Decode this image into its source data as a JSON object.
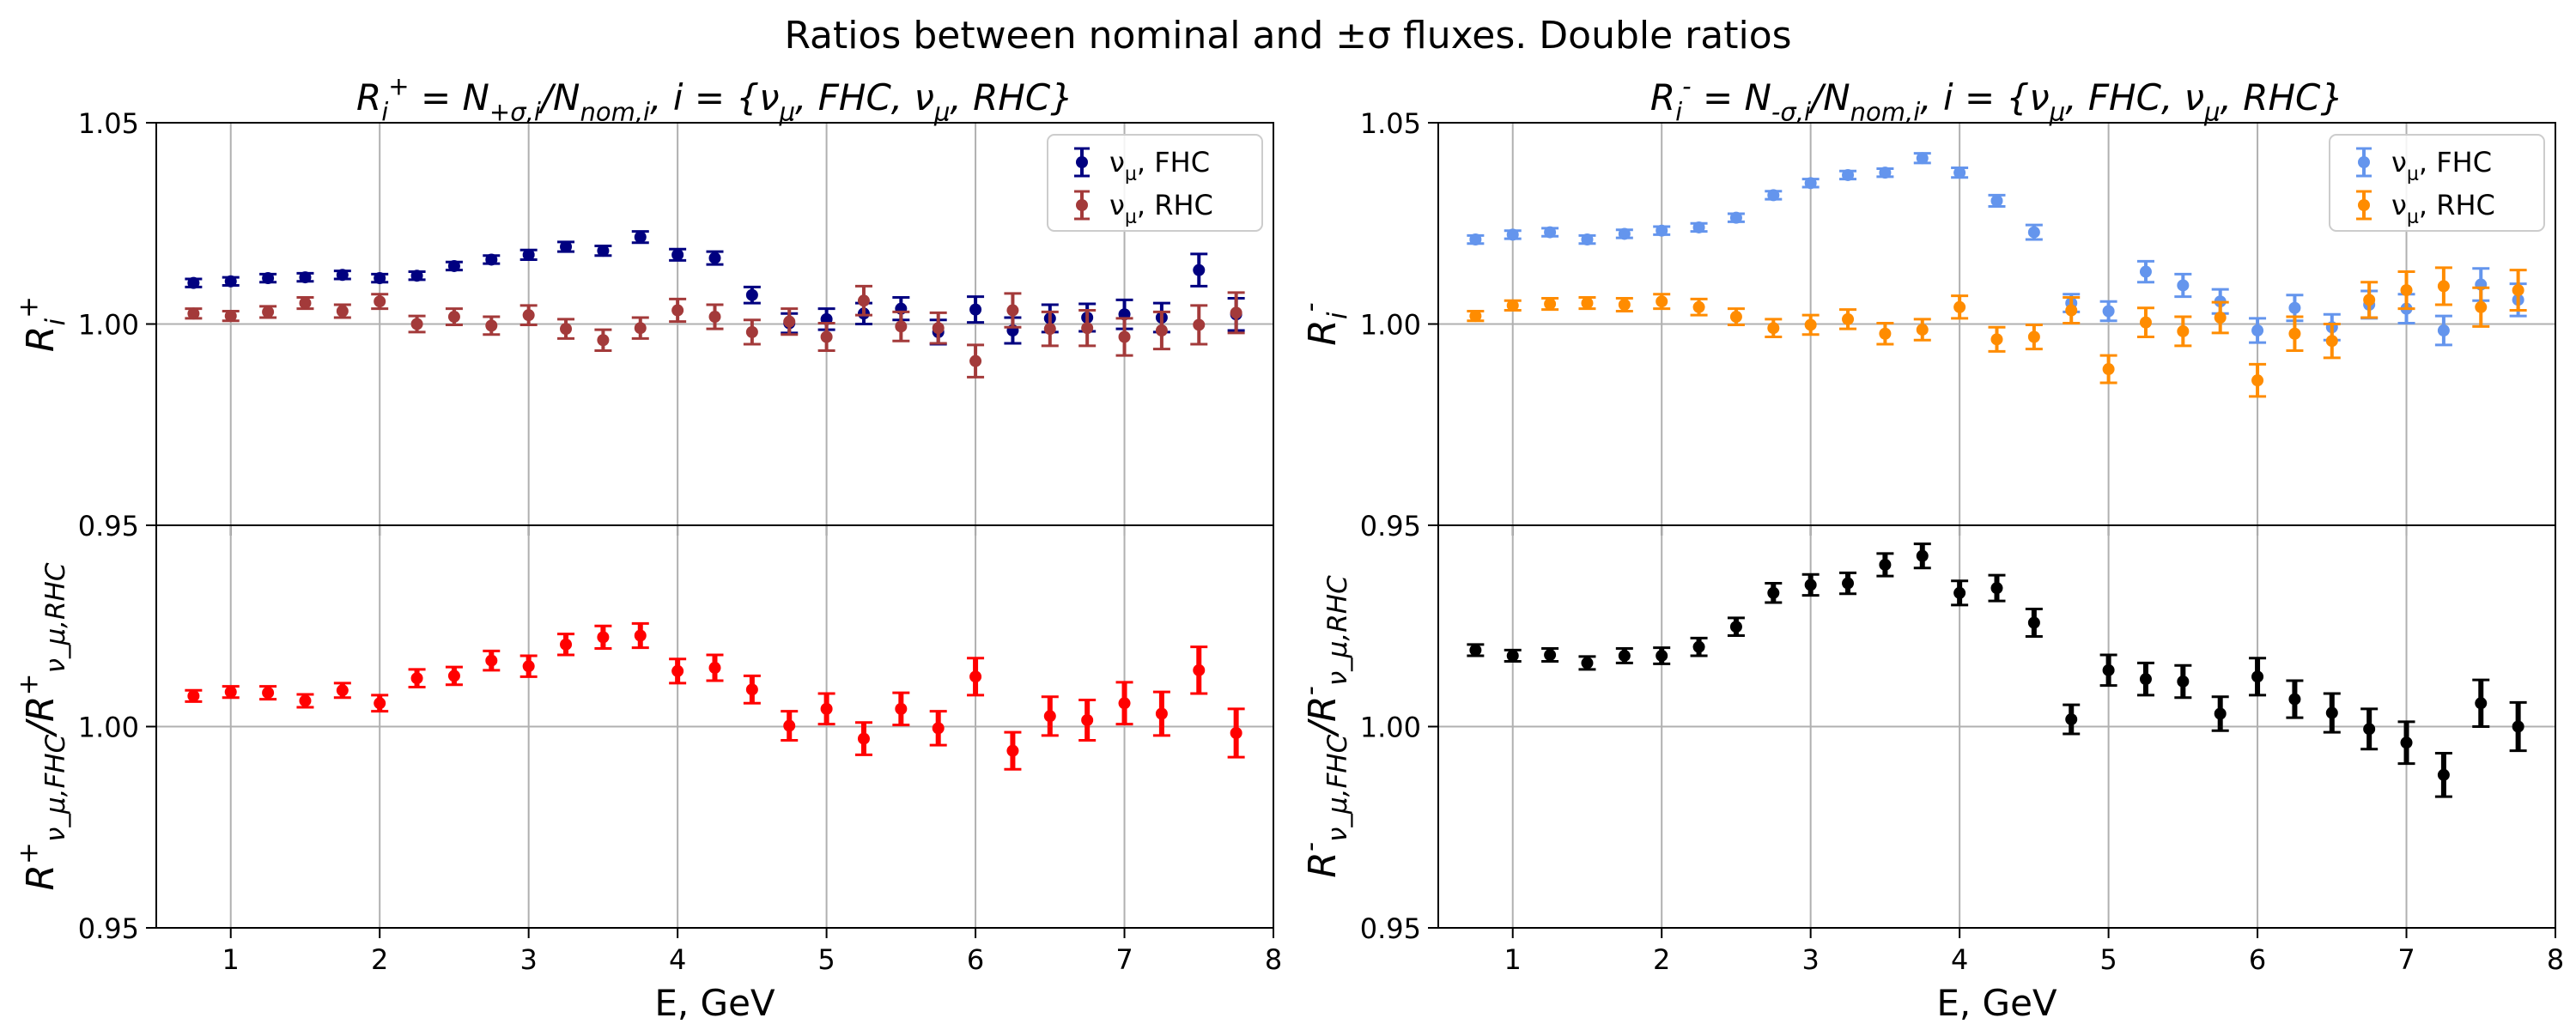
{
  "suptitle": "Ratios between nominal and ±σ fluxes. Double ratios",
  "chart_data": [
    {
      "type": "scatter",
      "panel": "top-left",
      "title": "R_i^+ = N_{+σ,i}/N_{nom,i}, i = {ν_μ, FHC, ν_μ, RHC}",
      "ylabel": "R_i^+",
      "xlabel": "",
      "xlim": [
        0.5,
        8
      ],
      "ylim": [
        0.95,
        1.05
      ],
      "yticks": [
        "0.95",
        "1.00",
        "1.05"
      ],
      "grid": true,
      "legend": "top-right",
      "x": [
        0.75,
        1.0,
        1.25,
        1.5,
        1.75,
        2.0,
        2.25,
        2.5,
        2.75,
        3.0,
        3.25,
        3.5,
        3.75,
        4.0,
        4.25,
        4.5,
        4.75,
        5.0,
        5.25,
        5.5,
        5.75,
        6.0,
        6.25,
        6.5,
        6.75,
        7.0,
        7.25,
        7.5,
        7.75
      ],
      "series": [
        {
          "name": "ν_μ, FHC",
          "color": "#000080",
          "values": [
            1.0102,
            1.0106,
            1.0114,
            1.0116,
            1.0122,
            1.0114,
            1.012,
            1.0144,
            1.016,
            1.0172,
            1.0192,
            1.0182,
            1.0216,
            1.0172,
            1.0164,
            1.0072,
            1.0002,
            1.0012,
            1.0026,
            1.0038,
            0.998,
            1.0036,
            0.9984,
            1.0014,
            1.0016,
            1.0024,
            1.0016,
            1.0134,
            1.0024
          ],
          "errors": [
            0.001,
            0.001,
            0.001,
            0.001,
            0.001,
            0.001,
            0.001,
            0.001,
            0.001,
            0.0012,
            0.0012,
            0.0012,
            0.0014,
            0.0014,
            0.0016,
            0.002,
            0.0024,
            0.0026,
            0.0026,
            0.0028,
            0.003,
            0.0032,
            0.0032,
            0.0034,
            0.0034,
            0.0036,
            0.0036,
            0.004,
            0.004
          ]
        },
        {
          "name": "ν_μ, RHC",
          "color": "#a33a3a",
          "values": [
            1.0026,
            1.002,
            1.003,
            1.0052,
            1.0032,
            1.0056,
            1.0,
            1.0018,
            0.9996,
            1.0022,
            0.9988,
            0.996,
            0.999,
            1.0034,
            1.0018,
            0.998,
            1.0006,
            0.9968,
            1.0058,
            0.9994,
            0.999,
            0.9908,
            1.0034,
            0.9988,
            0.999,
            0.9968,
            0.9984,
            0.9998,
            1.0028
          ],
          "errors": [
            0.0012,
            0.0012,
            0.0014,
            0.0014,
            0.0016,
            0.0018,
            0.002,
            0.002,
            0.0022,
            0.0024,
            0.0024,
            0.0026,
            0.0026,
            0.0028,
            0.003,
            0.003,
            0.0032,
            0.0034,
            0.0036,
            0.0036,
            0.0038,
            0.004,
            0.0042,
            0.0042,
            0.0044,
            0.0046,
            0.0046,
            0.0048,
            0.005
          ]
        }
      ]
    },
    {
      "type": "scatter",
      "panel": "top-right",
      "title": "R_i^- = N_{-σ,i}/N_{nom,i}, i = {ν_μ, FHC, ν_μ, RHC}",
      "ylabel": "R_i^-",
      "xlabel": "",
      "xlim": [
        0.5,
        8
      ],
      "ylim": [
        0.95,
        1.05
      ],
      "yticks": [
        "0.95",
        "1.00",
        "1.05"
      ],
      "grid": true,
      "legend": "top-right",
      "x": [
        0.75,
        1.0,
        1.25,
        1.5,
        1.75,
        2.0,
        2.25,
        2.5,
        2.75,
        3.0,
        3.25,
        3.5,
        3.75,
        4.0,
        4.25,
        4.5,
        4.75,
        5.0,
        5.25,
        5.5,
        5.75,
        6.0,
        6.25,
        6.5,
        6.75,
        7.0,
        7.25,
        7.5,
        7.75
      ],
      "series": [
        {
          "name": "ν_μ, FHC",
          "color": "#6495ed",
          "values": [
            1.021,
            1.0222,
            1.0228,
            1.021,
            1.0224,
            1.0232,
            1.024,
            1.0264,
            1.032,
            1.035,
            1.037,
            1.0376,
            1.0412,
            1.0376,
            1.0306,
            1.0228,
            1.0052,
            1.0032,
            1.013,
            1.0096,
            1.0056,
            0.9984,
            1.004,
            0.9992,
            1.0048,
            1.0038,
            0.9984,
            1.0098,
            1.006
          ],
          "errors": [
            0.001,
            0.001,
            0.001,
            0.001,
            0.001,
            0.001,
            0.001,
            0.001,
            0.001,
            0.001,
            0.001,
            0.001,
            0.0012,
            0.0012,
            0.0014,
            0.0018,
            0.0022,
            0.0024,
            0.0026,
            0.0028,
            0.003,
            0.003,
            0.0032,
            0.0032,
            0.0034,
            0.0036,
            0.0036,
            0.004,
            0.004
          ]
        },
        {
          "name": "ν_μ, RHC",
          "color": "#ff8c00",
          "values": [
            1.002,
            1.0046,
            1.005,
            1.0052,
            1.0048,
            1.0056,
            1.0042,
            1.0018,
            0.999,
            0.9998,
            1.0012,
            0.9976,
            0.9986,
            1.0042,
            0.9962,
            0.9968,
            1.0034,
            0.9888,
            1.0004,
            0.9982,
            1.0016,
            0.986,
            0.9976,
            0.9958,
            1.006,
            1.0084,
            1.0094,
            1.0042,
            1.0084
          ],
          "errors": [
            0.0012,
            0.0012,
            0.0014,
            0.0014,
            0.0016,
            0.0018,
            0.002,
            0.002,
            0.0022,
            0.0024,
            0.0024,
            0.0026,
            0.0026,
            0.0028,
            0.003,
            0.003,
            0.0032,
            0.0034,
            0.0036,
            0.0036,
            0.0038,
            0.004,
            0.0042,
            0.0042,
            0.0044,
            0.0046,
            0.0046,
            0.0048,
            0.005
          ]
        }
      ]
    },
    {
      "type": "scatter",
      "panel": "bottom-left",
      "title": "",
      "ylabel": "R^+_{ν_μ,FHC}/R^+_{ν_μ,RHC}",
      "xlabel": "E, GeV",
      "xlim": [
        0.5,
        8
      ],
      "ylim": [
        0.95,
        1.05
      ],
      "yticks": [
        "0.95",
        "1.00",
        ""
      ],
      "xticks": [
        "1",
        "2",
        "3",
        "4",
        "5",
        "6",
        "7",
        "8"
      ],
      "grid": true,
      "x": [
        0.75,
        1.0,
        1.25,
        1.5,
        1.75,
        2.0,
        2.25,
        2.5,
        2.75,
        3.0,
        3.25,
        3.5,
        3.75,
        4.0,
        4.25,
        4.5,
        4.75,
        5.0,
        5.25,
        5.5,
        5.75,
        6.0,
        6.25,
        6.5,
        6.75,
        7.0,
        7.25,
        7.5,
        7.75
      ],
      "series": [
        {
          "color": "#ff0000",
          "values": [
            1.0076,
            1.0086,
            1.0084,
            1.0064,
            1.009,
            1.0058,
            1.012,
            1.0126,
            1.0164,
            1.015,
            1.0204,
            1.0222,
            1.0226,
            1.0138,
            1.0146,
            1.0092,
            1.0002,
            1.0044,
            0.997,
            1.0044,
            0.9996,
            1.0124,
            0.994,
            1.0026,
            1.0016,
            1.0058,
            1.0032,
            1.014,
            0.9984
          ],
          "errors": [
            0.0014,
            0.0014,
            0.0016,
            0.0016,
            0.0018,
            0.002,
            0.0022,
            0.0022,
            0.0024,
            0.0026,
            0.0026,
            0.0028,
            0.003,
            0.003,
            0.0032,
            0.0034,
            0.0036,
            0.0038,
            0.004,
            0.004,
            0.0042,
            0.0046,
            0.0046,
            0.0048,
            0.005,
            0.0052,
            0.0054,
            0.0058,
            0.006
          ]
        }
      ]
    },
    {
      "type": "scatter",
      "panel": "bottom-right",
      "title": "",
      "ylabel": "R^-_{ν_μ,FHC}/R^-_{ν_μ,RHC}",
      "xlabel": "E, GeV",
      "xlim": [
        0.5,
        8
      ],
      "ylim": [
        0.95,
        1.05
      ],
      "yticks": [
        "0.95",
        "1.00",
        ""
      ],
      "xticks": [
        "1",
        "2",
        "3",
        "4",
        "5",
        "6",
        "7",
        "8"
      ],
      "grid": true,
      "x": [
        0.75,
        1.0,
        1.25,
        1.5,
        1.75,
        2.0,
        2.25,
        2.5,
        2.75,
        3.0,
        3.25,
        3.5,
        3.75,
        4.0,
        4.25,
        4.5,
        4.75,
        5.0,
        5.25,
        5.5,
        5.75,
        6.0,
        6.25,
        6.5,
        6.75,
        7.0,
        7.25,
        7.5,
        7.75
      ],
      "series": [
        {
          "color": "#000000",
          "values": [
            1.019,
            1.0176,
            1.0178,
            1.0158,
            1.0176,
            1.0176,
            1.0198,
            1.0248,
            1.0332,
            1.0352,
            1.0356,
            1.0402,
            1.0424,
            1.0332,
            1.0344,
            1.0258,
            1.0018,
            1.014,
            1.0118,
            1.0112,
            1.0032,
            1.0124,
            1.0068,
            1.0034,
            0.9994,
            0.996,
            0.988,
            1.0058,
            1.0
          ],
          "errors": [
            0.0014,
            0.0014,
            0.0016,
            0.0016,
            0.0018,
            0.002,
            0.0022,
            0.0022,
            0.0024,
            0.0026,
            0.0026,
            0.0028,
            0.003,
            0.003,
            0.0032,
            0.0034,
            0.0036,
            0.0038,
            0.004,
            0.004,
            0.0042,
            0.0046,
            0.0046,
            0.0048,
            0.005,
            0.0052,
            0.0054,
            0.0058,
            0.006
          ]
        }
      ]
    }
  ]
}
